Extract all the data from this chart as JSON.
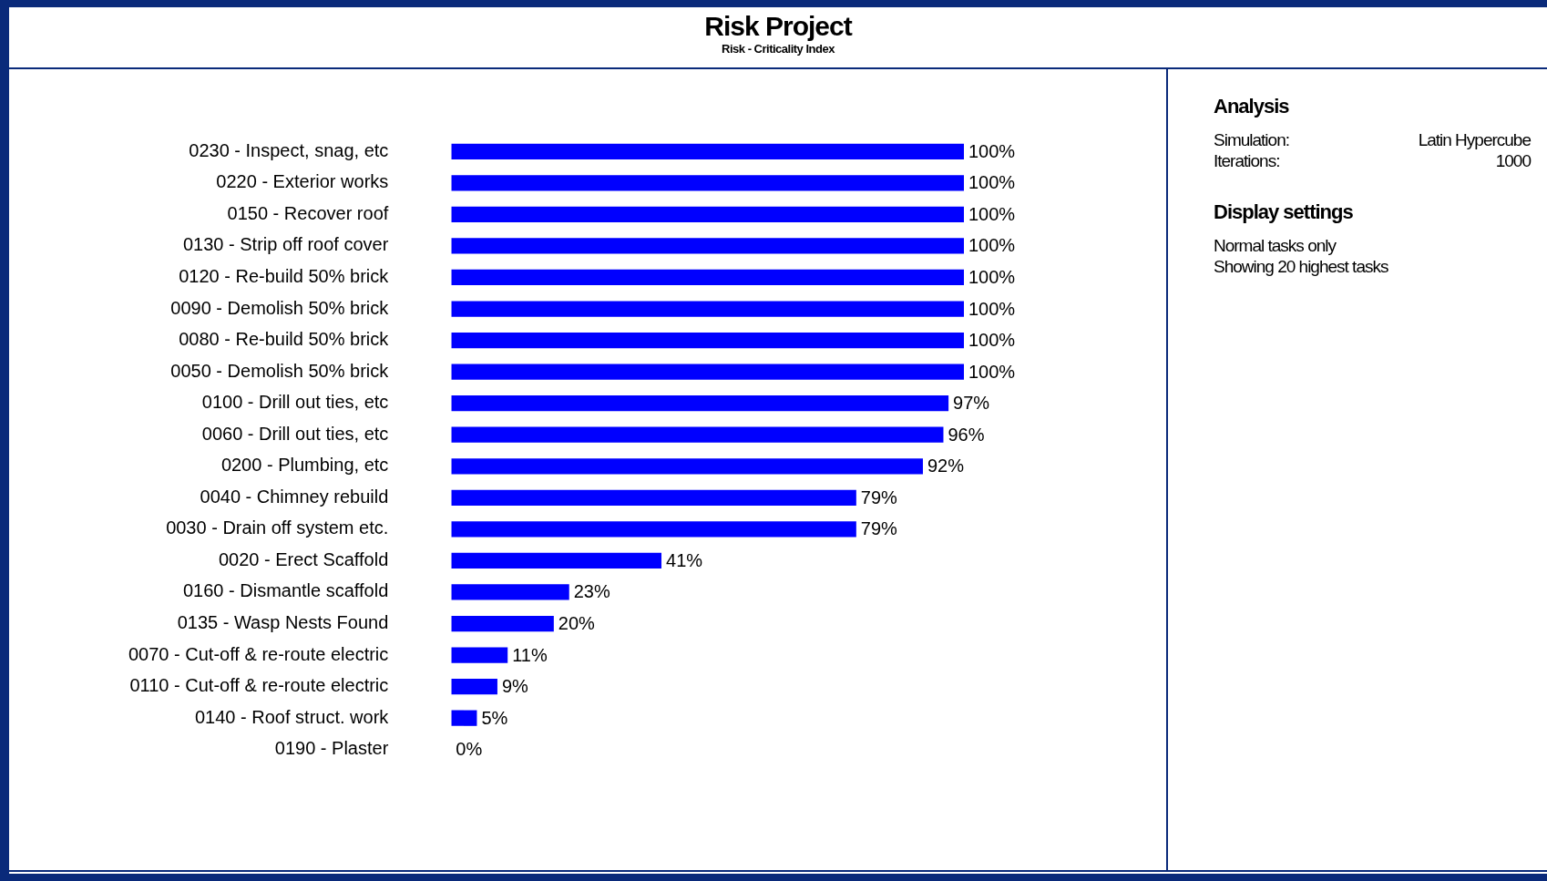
{
  "chart_data": {
    "type": "bar",
    "orientation": "horizontal",
    "title": "Risk Project",
    "subtitle": "Risk - Criticality Index",
    "categories": [
      "0230 - Inspect, snag, etc",
      "0220 - Exterior works",
      "0150 - Recover roof",
      "0130 - Strip off roof cover",
      "0120 - Re-build 50% brick",
      "0090 - Demolish 50% brick",
      "0080 - Re-build 50% brick",
      "0050 - Demolish 50% brick",
      "0100 - Drill out ties, etc",
      "0060 - Drill out ties, etc",
      "0200 - Plumbing, etc",
      "0040 - Chimney rebuild",
      "0030 - Drain off system etc.",
      "0020 - Erect Scaffold",
      "0160 - Dismantle scaffold",
      "0135 - Wasp Nests Found",
      "0070 - Cut-off & re-route electric",
      "0110 - Cut-off & re-route electric",
      "0140 - Roof struct. work",
      "0190 - Plaster"
    ],
    "values": [
      100,
      100,
      100,
      100,
      100,
      100,
      100,
      100,
      97,
      96,
      92,
      79,
      79,
      41,
      23,
      20,
      11,
      9,
      5,
      0
    ],
    "value_labels": [
      "100%",
      "100%",
      "100%",
      "100%",
      "100%",
      "100%",
      "100%",
      "100%",
      "97%",
      "96%",
      "92%",
      "79%",
      "79%",
      "41%",
      "23%",
      "20%",
      "11%",
      "9%",
      "5%",
      "0%"
    ],
    "color": "#0000ff",
    "xlim": [
      0,
      100
    ],
    "tick_labels": "y",
    "legend": false,
    "annotations": [
      "Analysis",
      "Simulation:\tLatin Hypercube",
      "Iterations:\t1000",
      "Display settings",
      "Normal tasks only",
      "Showing 20 highest tasks"
    ]
  }
}
